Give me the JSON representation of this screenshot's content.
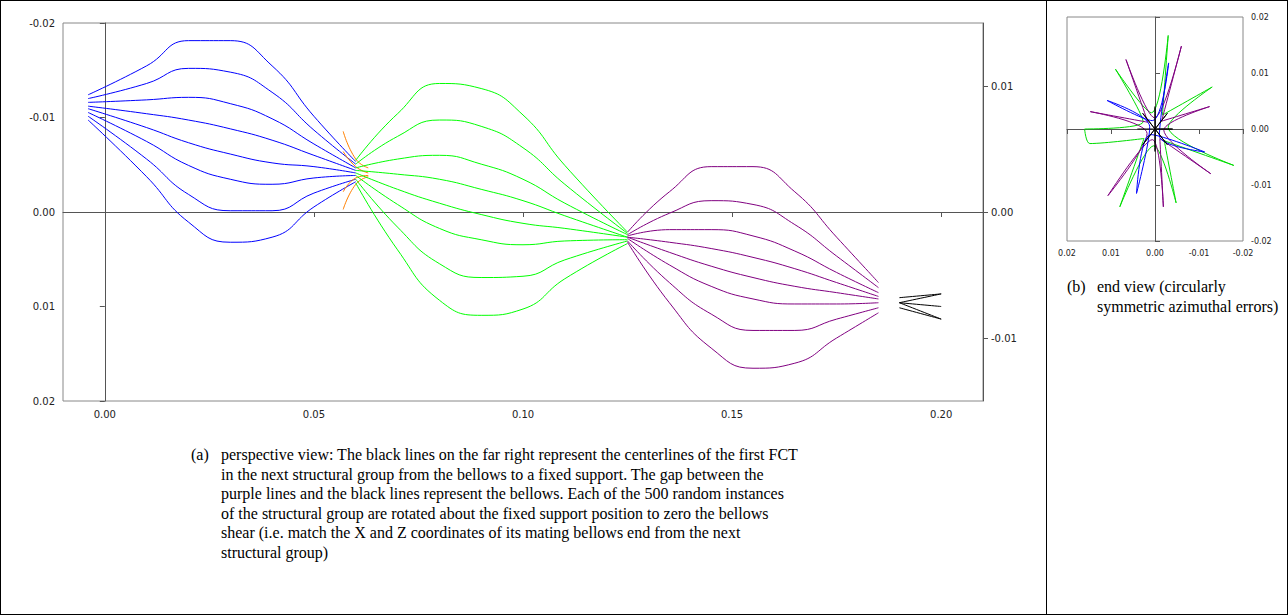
{
  "chart_data": [
    {
      "type": "line",
      "caption": {
        "label": "(a)",
        "text": "perspective view: The black lines on the far right represent the centerlines of the first FCT in the next structural group from the bellows to a fixed support. The gap between the purple lines and the black lines represent the bellows. Each of the 500 random instances of the structural group are rotated about the fixed support position to zero the bellows shear (i.e. match the X and Z coordinates of its mating bellows end from the next structural group)"
      },
      "xlim": [
        -0.01,
        0.21
      ],
      "xticks": [
        {
          "value": 0,
          "label": "0.00"
        },
        0.05,
        {
          "value": 0.1,
          "label": "0.10"
        },
        0.15,
        {
          "value": 0.2,
          "label": "0.20"
        }
      ],
      "ylim": [
        0.02,
        -0.02
      ],
      "yticks": [
        -0.02,
        -0.01,
        {
          "value": 0,
          "label": "0.00"
        },
        0.01,
        0.02
      ],
      "y2lim": [
        -0.015,
        0.015
      ],
      "y2ticks": [
        -0.01,
        {
          "value": 0,
          "label": "0.00"
        },
        0.01
      ],
      "grid": false,
      "series": [
        {
          "color": "#0000ff",
          "axis": "y2",
          "x": [
            -0.004,
            0.01,
            0.02,
            0.03,
            0.04,
            0.05,
            0.06
          ],
          "lines": [
            [
              0.0093,
              0.0116,
              0.0136,
              0.0136,
              0.0116,
              0.0076,
              0.004
            ],
            [
              0.009,
              0.0102,
              0.0114,
              0.0111,
              0.0095,
              0.0065,
              0.0038
            ],
            [
              0.0087,
              0.0089,
              0.0091,
              0.0086,
              0.0074,
              0.0054,
              0.0035
            ],
            [
              0.0084,
              0.0078,
              0.0073,
              0.0066,
              0.0057,
              0.0045,
              0.0033
            ],
            [
              0.0082,
              0.0067,
              0.0055,
              0.0046,
              0.0039,
              0.0036,
              0.0031
            ],
            [
              0.0079,
              0.0056,
              0.0037,
              0.0026,
              0.0022,
              0.0027,
              0.0029
            ],
            [
              0.0076,
              0.0042,
              0.0014,
              0.0001,
              0.0001,
              0.0015,
              0.0026
            ],
            [
              0.0073,
              0.0028,
              -0.0008,
              -0.0024,
              -0.002,
              0.0004,
              0.0024
            ]
          ]
        },
        {
          "color": "#ff8000",
          "axis": "y2",
          "x": [
            0.057,
            0.06,
            0.063
          ],
          "lines": [
            [
              0.0064,
              0.0042,
              0.0035
            ],
            [
              0.0002,
              0.0022,
              0.0028
            ],
            [
              0.0048,
              0.0036,
              0.0031
            ],
            [
              0.0016,
              0.0027,
              0.0029
            ]
          ]
        },
        {
          "color": "#00ff00",
          "axis": "y2",
          "x": [
            0.06,
            0.07,
            0.08,
            0.09,
            0.1,
            0.11,
            0.125
          ],
          "lines": [
            [
              0.0041,
              0.0078,
              0.0102,
              0.0098,
              0.0077,
              0.0037,
              -0.0016
            ],
            [
              0.0038,
              0.006,
              0.0073,
              0.0068,
              0.0051,
              0.0022,
              -0.0017
            ],
            [
              0.0035,
              0.0042,
              0.0045,
              0.0038,
              0.0026,
              0.0007,
              -0.0018
            ],
            [
              0.0033,
              0.003,
              0.0026,
              0.0018,
              0.0009,
              -0.0003,
              -0.002
            ],
            [
              0.0031,
              0.0018,
              0.0007,
              -0.0002,
              -0.0009,
              -0.0013,
              -0.002
            ],
            [
              0.0029,
              0.0006,
              -0.0013,
              -0.0022,
              -0.0026,
              -0.0023,
              -0.0022
            ],
            [
              0.0026,
              -0.0012,
              -0.0041,
              -0.0052,
              -0.0051,
              -0.0038,
              -0.0023
            ],
            [
              0.0023,
              -0.003,
              -0.007,
              -0.0082,
              -0.0077,
              -0.0053,
              -0.0025
            ]
          ]
        },
        {
          "color": "#800080",
          "axis": "y2",
          "x": [
            0.125,
            0.135,
            0.145,
            0.155,
            0.165,
            0.175,
            0.185
          ],
          "lines": [
            [
              -0.0016,
              0.0016,
              0.0036,
              0.0036,
              0.0016,
              -0.002,
              -0.0056
            ],
            [
              -0.0018,
              -0.0001,
              0.0009,
              0.0006,
              -0.001,
              -0.0035,
              -0.006
            ],
            [
              -0.0019,
              -0.0014,
              -0.0014,
              -0.0019,
              -0.0031,
              -0.0048,
              -0.0064
            ],
            [
              -0.002,
              -0.0024,
              -0.0029,
              -0.0036,
              -0.0045,
              -0.0056,
              -0.0067
            ],
            [
              -0.002,
              -0.0032,
              -0.0043,
              -0.0052,
              -0.0059,
              -0.0064,
              -0.0069
            ],
            [
              -0.0021,
              -0.0042,
              -0.0059,
              -0.0069,
              -0.0073,
              -0.0073,
              -0.0072
            ],
            [
              -0.0023,
              -0.0056,
              -0.0081,
              -0.0094,
              -0.0094,
              -0.0085,
              -0.0076
            ],
            [
              -0.0024,
              -0.0072,
              -0.0108,
              -0.0124,
              -0.012,
              -0.01,
              -0.008
            ]
          ]
        },
        {
          "color": "#000000",
          "axis": "y2",
          "x": [
            0.19,
            0.2
          ],
          "lines": [
            [
              -0.0072,
              -0.0085
            ],
            [
              -0.0072,
              -0.0075
            ],
            [
              -0.0072,
              -0.0065
            ],
            [
              -0.0076,
              -0.0085
            ],
            [
              -0.0068,
              -0.0065
            ]
          ]
        }
      ]
    },
    {
      "type": "line",
      "caption": {
        "label": "(b)",
        "text": "end view (circularly symmetric azimuthal errors)"
      },
      "xlim": [
        0.02,
        -0.02
      ],
      "xticks": [
        -0.02,
        -0.01,
        {
          "value": 0,
          "label": "0.00"
        },
        0.01,
        0.02
      ],
      "ylim": [
        -0.02,
        0.02
      ],
      "yticks": [
        -0.02,
        -0.01,
        {
          "value": 0,
          "label": "0.00"
        },
        0.01,
        0.02
      ],
      "grid": false,
      "series": [
        {
          "color": "#00dd00",
          "points": [
            [
              0.016,
              0
            ],
            [
              0.0027,
              0.0013
            ],
            [
              0.009,
              0.0107
            ],
            [
              0.0008,
              0.0029
            ],
            [
              -0.003,
              0.0167
            ],
            [
              -0.0017,
              0.0025
            ],
            [
              -0.013,
              0.0075
            ],
            [
              -0.003,
              0.0003
            ],
            [
              -0.0179,
              -0.0065
            ],
            [
              -0.0021,
              -0.0021
            ],
            [
              -0.0048,
              -0.0132
            ],
            [
              0.0003,
              -0.003
            ],
            [
              0.008,
              -0.0139
            ],
            [
              0.0025,
              -0.0017
            ],
            [
              0.0148,
              -0.0026
            ],
            [
              0.016,
              0
            ]
          ]
        },
        {
          "color": "#800080",
          "points": [
            [
              0.0147,
              0.0031
            ],
            [
              0.0016,
              0.0012
            ],
            [
              0.0066,
              0.0124
            ],
            [
              0.0001,
              0.002
            ],
            [
              -0.006,
              0.0148
            ],
            [
              -0.0015,
              0.0014
            ],
            [
              -0.0124,
              0.004
            ],
            [
              -0.002,
              -0.0002
            ],
            [
              -0.0127,
              -0.008
            ],
            [
              -0.0011,
              -0.0017
            ],
            [
              -0.0019,
              -0.0139
            ],
            [
              0.0006,
              -0.0019
            ],
            [
              0.0107,
              -0.0119
            ],
            [
              0.0018,
              -0.0008
            ],
            [
              0.0147,
              0.0031
            ]
          ]
        },
        {
          "color": "#0000ff",
          "points": [
            [
              0.0109,
              0.0051
            ],
            [
              0.0006,
              0.0015
            ],
            [
              -0.0031,
              0.0118
            ],
            [
              -0.001,
              -0.0012
            ],
            [
              -0.0113,
              -0.0041
            ],
            [
              0.001,
              -0.001
            ],
            [
              0.0042,
              -0.0115
            ],
            [
              0.0012,
              0.0004
            ],
            [
              0.0109,
              0.0051
            ]
          ]
        },
        {
          "color": "#000000",
          "points": [
            [
              0.004,
              0
            ],
            [
              0,
              0
            ],
            [
              0.0028,
              0.0028
            ],
            [
              0,
              0
            ],
            [
              0,
              0.004
            ],
            [
              0,
              0
            ],
            [
              -0.0028,
              0.0028
            ],
            [
              0,
              0
            ],
            [
              -0.004,
              0
            ],
            [
              0,
              0
            ],
            [
              -0.0028,
              -0.0028
            ],
            [
              0,
              0
            ],
            [
              0,
              -0.004
            ],
            [
              0,
              0
            ],
            [
              0.0028,
              -0.0028
            ],
            [
              0,
              0
            ]
          ]
        }
      ]
    }
  ]
}
